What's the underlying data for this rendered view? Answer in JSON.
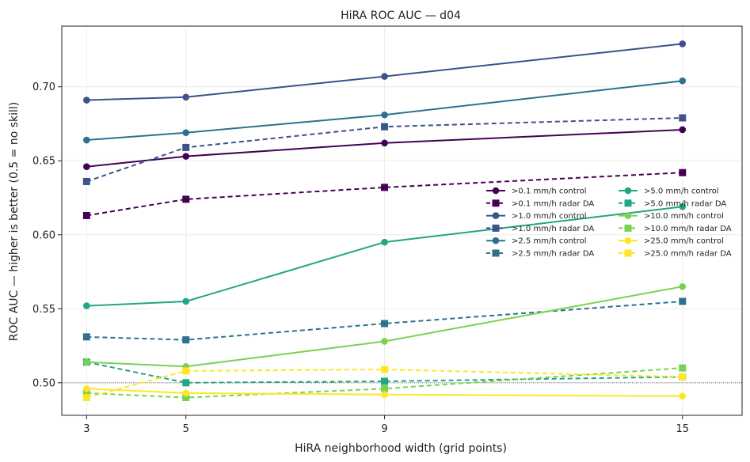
{
  "chart_data": {
    "type": "line",
    "title": "HiRA ROC AUC — d04",
    "xlabel": "HiRA neighborhood width (grid points)",
    "ylabel": "ROC AUC — higher is better (0.5 = no skill)",
    "x": [
      3,
      5,
      9,
      15
    ],
    "xlim": [
      2.5,
      16.2
    ],
    "ylim": [
      0.478,
      0.741
    ],
    "xticks": [
      "3",
      "5",
      "9",
      "15"
    ],
    "yticks": [
      "0.50",
      "0.55",
      "0.60",
      "0.65",
      "0.70"
    ],
    "reference_line": 0.5,
    "grid": true,
    "legend_position": "right",
    "series": [
      {
        "name": ">0.1 mm/h control",
        "color": "#440154",
        "dash": false,
        "marker": "circle",
        "values": [
          0.646,
          0.653,
          0.662,
          0.671
        ]
      },
      {
        "name": ">0.1 mm/h radar DA",
        "color": "#440154",
        "dash": true,
        "marker": "square",
        "values": [
          0.613,
          0.624,
          0.632,
          0.642
        ]
      },
      {
        "name": ">1.0 mm/h control",
        "color": "#3b528b",
        "dash": false,
        "marker": "circle",
        "values": [
          0.691,
          0.693,
          0.707,
          0.729
        ]
      },
      {
        "name": ">1.0 mm/h radar DA",
        "color": "#3b528b",
        "dash": true,
        "marker": "square",
        "values": [
          0.636,
          0.659,
          0.673,
          0.679
        ]
      },
      {
        "name": ">2.5 mm/h control",
        "color": "#2c728e",
        "dash": false,
        "marker": "circle",
        "values": [
          0.664,
          0.669,
          0.681,
          0.704
        ]
      },
      {
        "name": ">2.5 mm/h radar DA",
        "color": "#2c728e",
        "dash": true,
        "marker": "square",
        "values": [
          0.531,
          0.529,
          0.54,
          0.555
        ]
      },
      {
        "name": ">5.0 mm/h control",
        "color": "#21a685",
        "dash": false,
        "marker": "circle",
        "values": [
          0.552,
          0.555,
          0.595,
          0.619
        ]
      },
      {
        "name": ">5.0 mm/h radar DA",
        "color": "#21a685",
        "dash": true,
        "marker": "square",
        "values": [
          0.514,
          0.5,
          0.501,
          0.504
        ]
      },
      {
        "name": ">10.0 mm/h control",
        "color": "#7ad151",
        "dash": false,
        "marker": "circle",
        "values": [
          0.514,
          0.511,
          0.528,
          0.565
        ]
      },
      {
        "name": ">10.0 mm/h radar DA",
        "color": "#7ad151",
        "dash": true,
        "marker": "square",
        "values": [
          0.493,
          0.49,
          0.496,
          0.51
        ]
      },
      {
        "name": ">25.0 mm/h control",
        "color": "#fde725",
        "dash": false,
        "marker": "circle",
        "values": [
          0.496,
          0.493,
          0.492,
          0.491
        ]
      },
      {
        "name": ">25.0 mm/h radar DA",
        "color": "#fde725",
        "dash": true,
        "marker": "square",
        "values": [
          0.49,
          0.508,
          0.509,
          0.504
        ]
      }
    ]
  }
}
